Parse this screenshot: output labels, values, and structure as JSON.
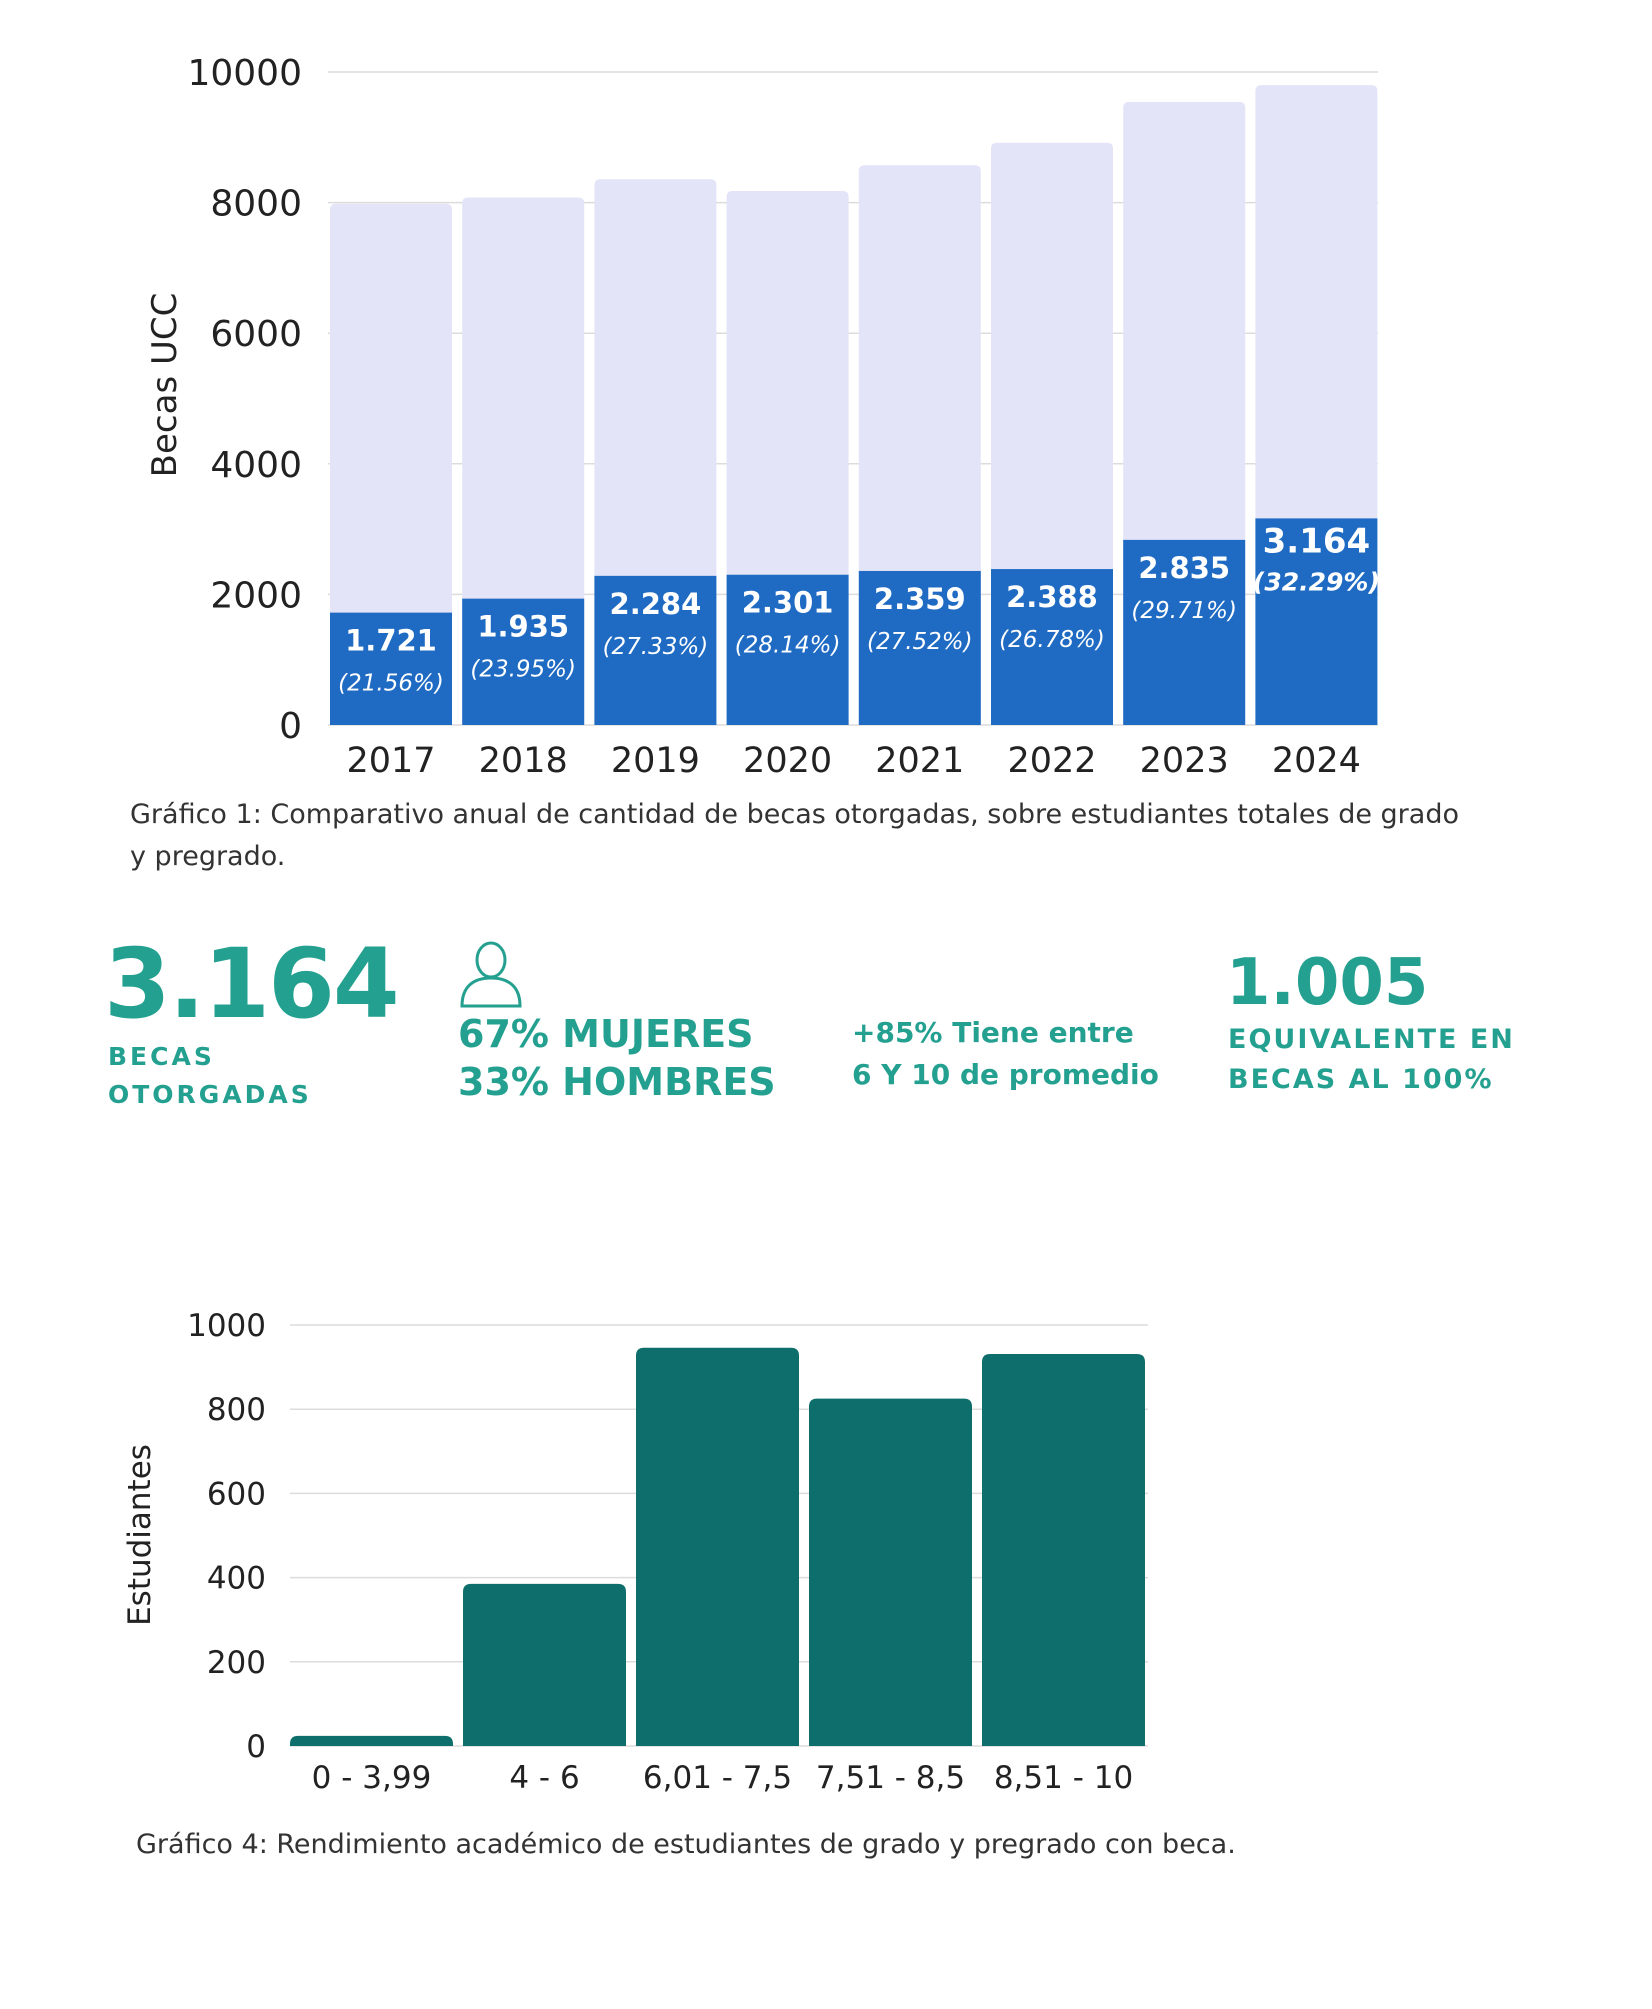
{
  "chart_data": [
    {
      "type": "bar",
      "stacked": "overlay",
      "ylabel": "Becas UCC",
      "ylim": [
        0,
        10000
      ],
      "yticks": [
        "0",
        "2000",
        "4000",
        "6000",
        "8000",
        "10000"
      ],
      "categories": [
        "2017",
        "2018",
        "2019",
        "2020",
        "2021",
        "2022",
        "2023",
        "2024"
      ],
      "series": [
        {
          "name": "Estudiantes totales",
          "values": [
            7982,
            8079,
            8357,
            8177,
            8572,
            8917,
            9542,
            9799
          ],
          "color": "#e3e4f8"
        },
        {
          "name": "Becas otorgadas",
          "values": [
            1721,
            1935,
            2284,
            2301,
            2359,
            2388,
            2835,
            3164
          ],
          "color": "#1f6bc3"
        }
      ],
      "labels": [
        "1.721",
        "1.935",
        "2.284",
        "2.301",
        "2.359",
        "2.388",
        "2.835",
        "3.164"
      ],
      "percent_labels": [
        "(21.56%)",
        "(23.95%)",
        "(27.33%)",
        "(28.14%)",
        "(27.52%)",
        "(26.78%)",
        "(29.71%)",
        "(32.29%)"
      ],
      "grid": true,
      "caption": "Gráfico 1: Comparativo anual de cantidad de becas otorgadas, sobre estudiantes totales de grado y pregrado."
    },
    {
      "type": "bar",
      "ylabel": "Estudiantes",
      "ylim": [
        0,
        1000
      ],
      "yticks": [
        "0",
        "200",
        "400",
        "600",
        "800",
        "1000"
      ],
      "categories": [
        "0 - 3,99",
        "4 - 6",
        "6,01 - 7,5",
        "7,51 - 8,5",
        "8,51 - 10"
      ],
      "values": [
        24,
        385,
        946,
        825,
        931
      ],
      "color": "#0e6e6b",
      "grid": true,
      "caption": "Gráfico 4: Rendimiento académico de estudiantes de grado y pregrado con beca."
    }
  ],
  "stats": {
    "becas_number": "3.164",
    "becas_label_1": "BECAS",
    "becas_label_2": "OTORGADAS",
    "user_icon": "person-icon",
    "mujeres": "67% MUJERES",
    "hombres": "33% HOMBRES",
    "promedio_1": "+85% Tiene entre",
    "promedio_2": "6 Y 10 de promedio",
    "equiv_number": "1.005",
    "equiv_label_1": "EQUIVALENTE EN",
    "equiv_label_2": "BECAS AL 100%",
    "accent": "#23a08f"
  }
}
